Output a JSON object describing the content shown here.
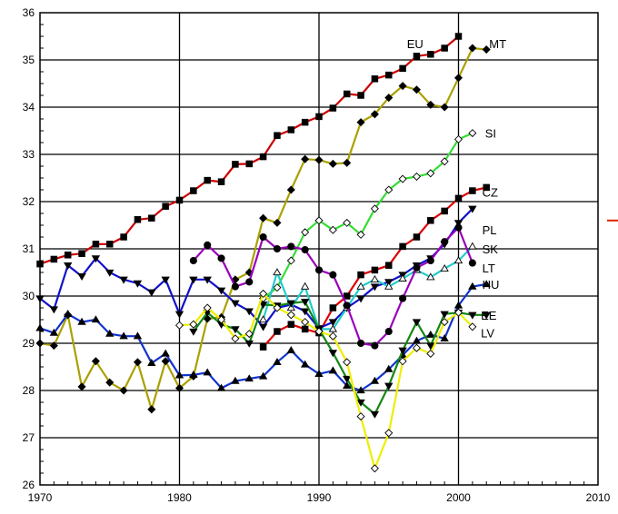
{
  "chart_data": {
    "type": "line",
    "title": "",
    "xlabel": "",
    "ylabel": "",
    "xlim": [
      1970,
      2010
    ],
    "ylim": [
      26,
      36
    ],
    "xticks": [
      1970,
      1980,
      1990,
      2000,
      2010
    ],
    "yticks": [
      26,
      27,
      28,
      29,
      30,
      31,
      32,
      33,
      34,
      35,
      36
    ],
    "grid": true,
    "series": [
      {
        "name": "EU",
        "color": "#cc0000",
        "marker": "filled-square",
        "x": [
          1970,
          1971,
          1972,
          1973,
          1974,
          1975,
          1976,
          1977,
          1978,
          1979,
          1980,
          1981,
          1982,
          1983,
          1984,
          1985,
          1986,
          1987,
          1988,
          1989,
          1990,
          1991,
          1992,
          1993,
          1994,
          1995,
          1996,
          1997,
          1998,
          1999,
          2000
        ],
        "y": [
          30.68,
          30.78,
          30.87,
          30.9,
          31.1,
          31.1,
          31.25,
          31.62,
          31.65,
          31.9,
          32.03,
          32.23,
          32.45,
          32.42,
          32.79,
          32.8,
          32.95,
          33.4,
          33.52,
          33.68,
          33.8,
          33.98,
          34.28,
          34.25,
          34.6,
          34.68,
          34.82,
          35.08,
          35.12,
          35.25,
          35.5
        ]
      },
      {
        "name": "MT",
        "color": "#aaa000",
        "marker": "filled-diamond",
        "x": [
          1970,
          1971,
          1972,
          1973,
          1974,
          1975,
          1976,
          1977,
          1978,
          1979,
          1980,
          1981,
          1982,
          1983,
          1984,
          1985,
          1986,
          1987,
          1988,
          1989,
          1990,
          1991,
          1992,
          1993,
          1994,
          1995,
          1996,
          1997,
          1998,
          1999,
          2000,
          2001,
          2002
        ],
        "y": [
          29.0,
          28.95,
          29.6,
          28.08,
          28.62,
          28.17,
          28.0,
          28.6,
          27.6,
          28.62,
          28.05,
          28.3,
          29.52,
          29.55,
          30.35,
          30.5,
          31.65,
          31.55,
          32.25,
          32.9,
          32.88,
          32.8,
          32.82,
          33.68,
          33.85,
          34.2,
          34.45,
          34.37,
          34.05,
          34.0,
          34.62,
          35.25,
          35.22
        ]
      },
      {
        "name": "SI",
        "color": "#33dd33",
        "marker": "hollow-diamond",
        "x": [
          1986,
          1987,
          1988,
          1989,
          1990,
          1991,
          1992,
          1993,
          1994,
          1995,
          1996,
          1997,
          1998,
          1999,
          2000,
          2001
        ],
        "y": [
          29.95,
          30.18,
          30.75,
          31.35,
          31.6,
          31.4,
          31.55,
          31.3,
          31.85,
          32.25,
          32.48,
          32.53,
          32.6,
          32.85,
          33.32,
          33.45
        ]
      },
      {
        "name": "CZ",
        "color": "#dd0000",
        "marker": "filled-square",
        "x": [
          1986,
          1987,
          1988,
          1989,
          1990,
          1991,
          1992,
          1993,
          1994,
          1995,
          1996,
          1997,
          1998,
          1999,
          2000,
          2001,
          2002
        ],
        "y": [
          28.92,
          29.25,
          29.4,
          29.3,
          29.22,
          29.75,
          30.0,
          30.45,
          30.55,
          30.65,
          31.05,
          31.25,
          31.6,
          31.8,
          32.07,
          32.23,
          32.3
        ]
      },
      {
        "name": "PL",
        "color": "#1111cc",
        "marker": "filled-down-triangle",
        "x": [
          1970,
          1971,
          1972,
          1973,
          1974,
          1975,
          1976,
          1977,
          1978,
          1979,
          1980,
          1981,
          1982,
          1983,
          1984,
          1985,
          1986,
          1987,
          1988,
          1989,
          1990,
          1991,
          1992,
          1993,
          1994,
          1995,
          1996,
          1997,
          1998,
          1999,
          2000,
          2001
        ],
        "y": [
          29.95,
          29.72,
          30.65,
          30.42,
          30.8,
          30.5,
          30.35,
          30.27,
          30.08,
          30.35,
          29.62,
          30.35,
          30.35,
          30.12,
          29.85,
          29.68,
          29.35,
          29.75,
          29.82,
          29.68,
          29.32,
          29.45,
          29.75,
          29.95,
          30.2,
          30.3,
          30.45,
          30.65,
          30.8,
          31.1,
          31.55,
          31.85
        ]
      },
      {
        "name": "SK",
        "color": "#22cccc",
        "marker": "hollow-up-triangle",
        "x": [
          1986,
          1987,
          1988,
          1989,
          1990,
          1991,
          1992,
          1993,
          1994,
          1995,
          1996,
          1997,
          1998,
          1999,
          2000,
          2001
        ],
        "y": [
          29.5,
          30.5,
          29.75,
          30.2,
          29.3,
          29.3,
          29.75,
          30.2,
          30.35,
          30.2,
          30.37,
          30.55,
          30.4,
          30.58,
          30.75,
          31.05
        ]
      },
      {
        "name": "LT",
        "color": "#9900bb",
        "marker": "filled-circle",
        "x": [
          1981,
          1982,
          1983,
          1984,
          1985,
          1986,
          1987,
          1988,
          1989,
          1990,
          1991,
          1992,
          1993,
          1994,
          1995,
          1996,
          1997,
          1998,
          1999,
          2000,
          2001
        ],
        "y": [
          30.75,
          31.08,
          30.8,
          30.2,
          30.3,
          31.25,
          31.0,
          31.05,
          30.98,
          30.55,
          30.45,
          29.8,
          29.0,
          28.95,
          29.25,
          29.95,
          30.6,
          30.75,
          31.15,
          31.45,
          30.7
        ]
      },
      {
        "name": "HU",
        "color": "#1133cc",
        "marker": "filled-up-triangle",
        "x": [
          1970,
          1971,
          1972,
          1973,
          1974,
          1975,
          1976,
          1977,
          1978,
          1979,
          1980,
          1981,
          1982,
          1983,
          1984,
          1985,
          1986,
          1987,
          1988,
          1989,
          1990,
          1991,
          1992,
          1993,
          1994,
          1995,
          1996,
          1997,
          1998,
          1999,
          2000,
          2001,
          2002
        ],
        "y": [
          29.32,
          29.22,
          29.62,
          29.45,
          29.5,
          29.2,
          29.15,
          29.15,
          28.58,
          28.78,
          28.32,
          28.33,
          28.38,
          28.05,
          28.2,
          28.25,
          28.3,
          28.6,
          28.85,
          28.55,
          28.35,
          28.42,
          28.1,
          28.0,
          28.2,
          28.45,
          28.75,
          29.05,
          29.18,
          29.1,
          29.8,
          30.2,
          30.25
        ]
      },
      {
        "name": "EE",
        "color": "#118811",
        "marker": "filled-down-triangle",
        "x": [
          1981,
          1982,
          1983,
          1984,
          1985,
          1986,
          1987,
          1988,
          1989,
          1990,
          1991,
          1992,
          1993,
          1994,
          1995,
          1996,
          1997,
          1998,
          1999,
          2000,
          2001,
          2002
        ],
        "y": [
          29.25,
          29.65,
          29.4,
          29.3,
          29.0,
          29.82,
          29.8,
          29.85,
          29.88,
          29.3,
          28.8,
          28.25,
          27.75,
          27.5,
          28.1,
          28.85,
          29.45,
          28.95,
          29.62,
          29.65,
          29.6,
          29.6
        ]
      },
      {
        "name": "LV",
        "color": "#eeee00",
        "marker": "hollow-diamond",
        "x": [
          1980,
          1981,
          1982,
          1983,
          1984,
          1985,
          1986,
          1987,
          1988,
          1989,
          1990,
          1991,
          1992,
          1993,
          1994,
          1995,
          1996,
          1997,
          1998,
          1999,
          2000,
          2001
        ],
        "y": [
          29.38,
          29.4,
          29.75,
          29.5,
          29.1,
          29.2,
          30.05,
          29.75,
          29.6,
          29.45,
          29.25,
          29.15,
          28.6,
          27.45,
          26.35,
          27.1,
          28.62,
          28.9,
          28.78,
          29.45,
          29.65,
          29.35
        ]
      }
    ],
    "labels": [
      {
        "text": "EU",
        "x": 1966.3,
        "y": 35.35
      },
      {
        "text": "MT",
        "x": 1972.2,
        "y": 35.35
      },
      {
        "text": "SI",
        "x": 1971.9,
        "y": 33.45
      },
      {
        "text": "CZ",
        "x": 1971.7,
        "y": 32.2
      },
      {
        "text": "PL",
        "x": 1971.7,
        "y": 31.4
      },
      {
        "text": "SK",
        "x": 1971.7,
        "y": 31.0
      },
      {
        "text": "LT",
        "x": 1971.7,
        "y": 30.6
      },
      {
        "text": "HU",
        "x": 1971.7,
        "y": 30.25
      },
      {
        "text": "EE",
        "x": 1971.6,
        "y": 29.6
      },
      {
        "text": "LV",
        "x": 1971.6,
        "y": 29.22
      }
    ],
    "side_marker": {
      "color": "#dd2200",
      "y": 31.6
    }
  }
}
